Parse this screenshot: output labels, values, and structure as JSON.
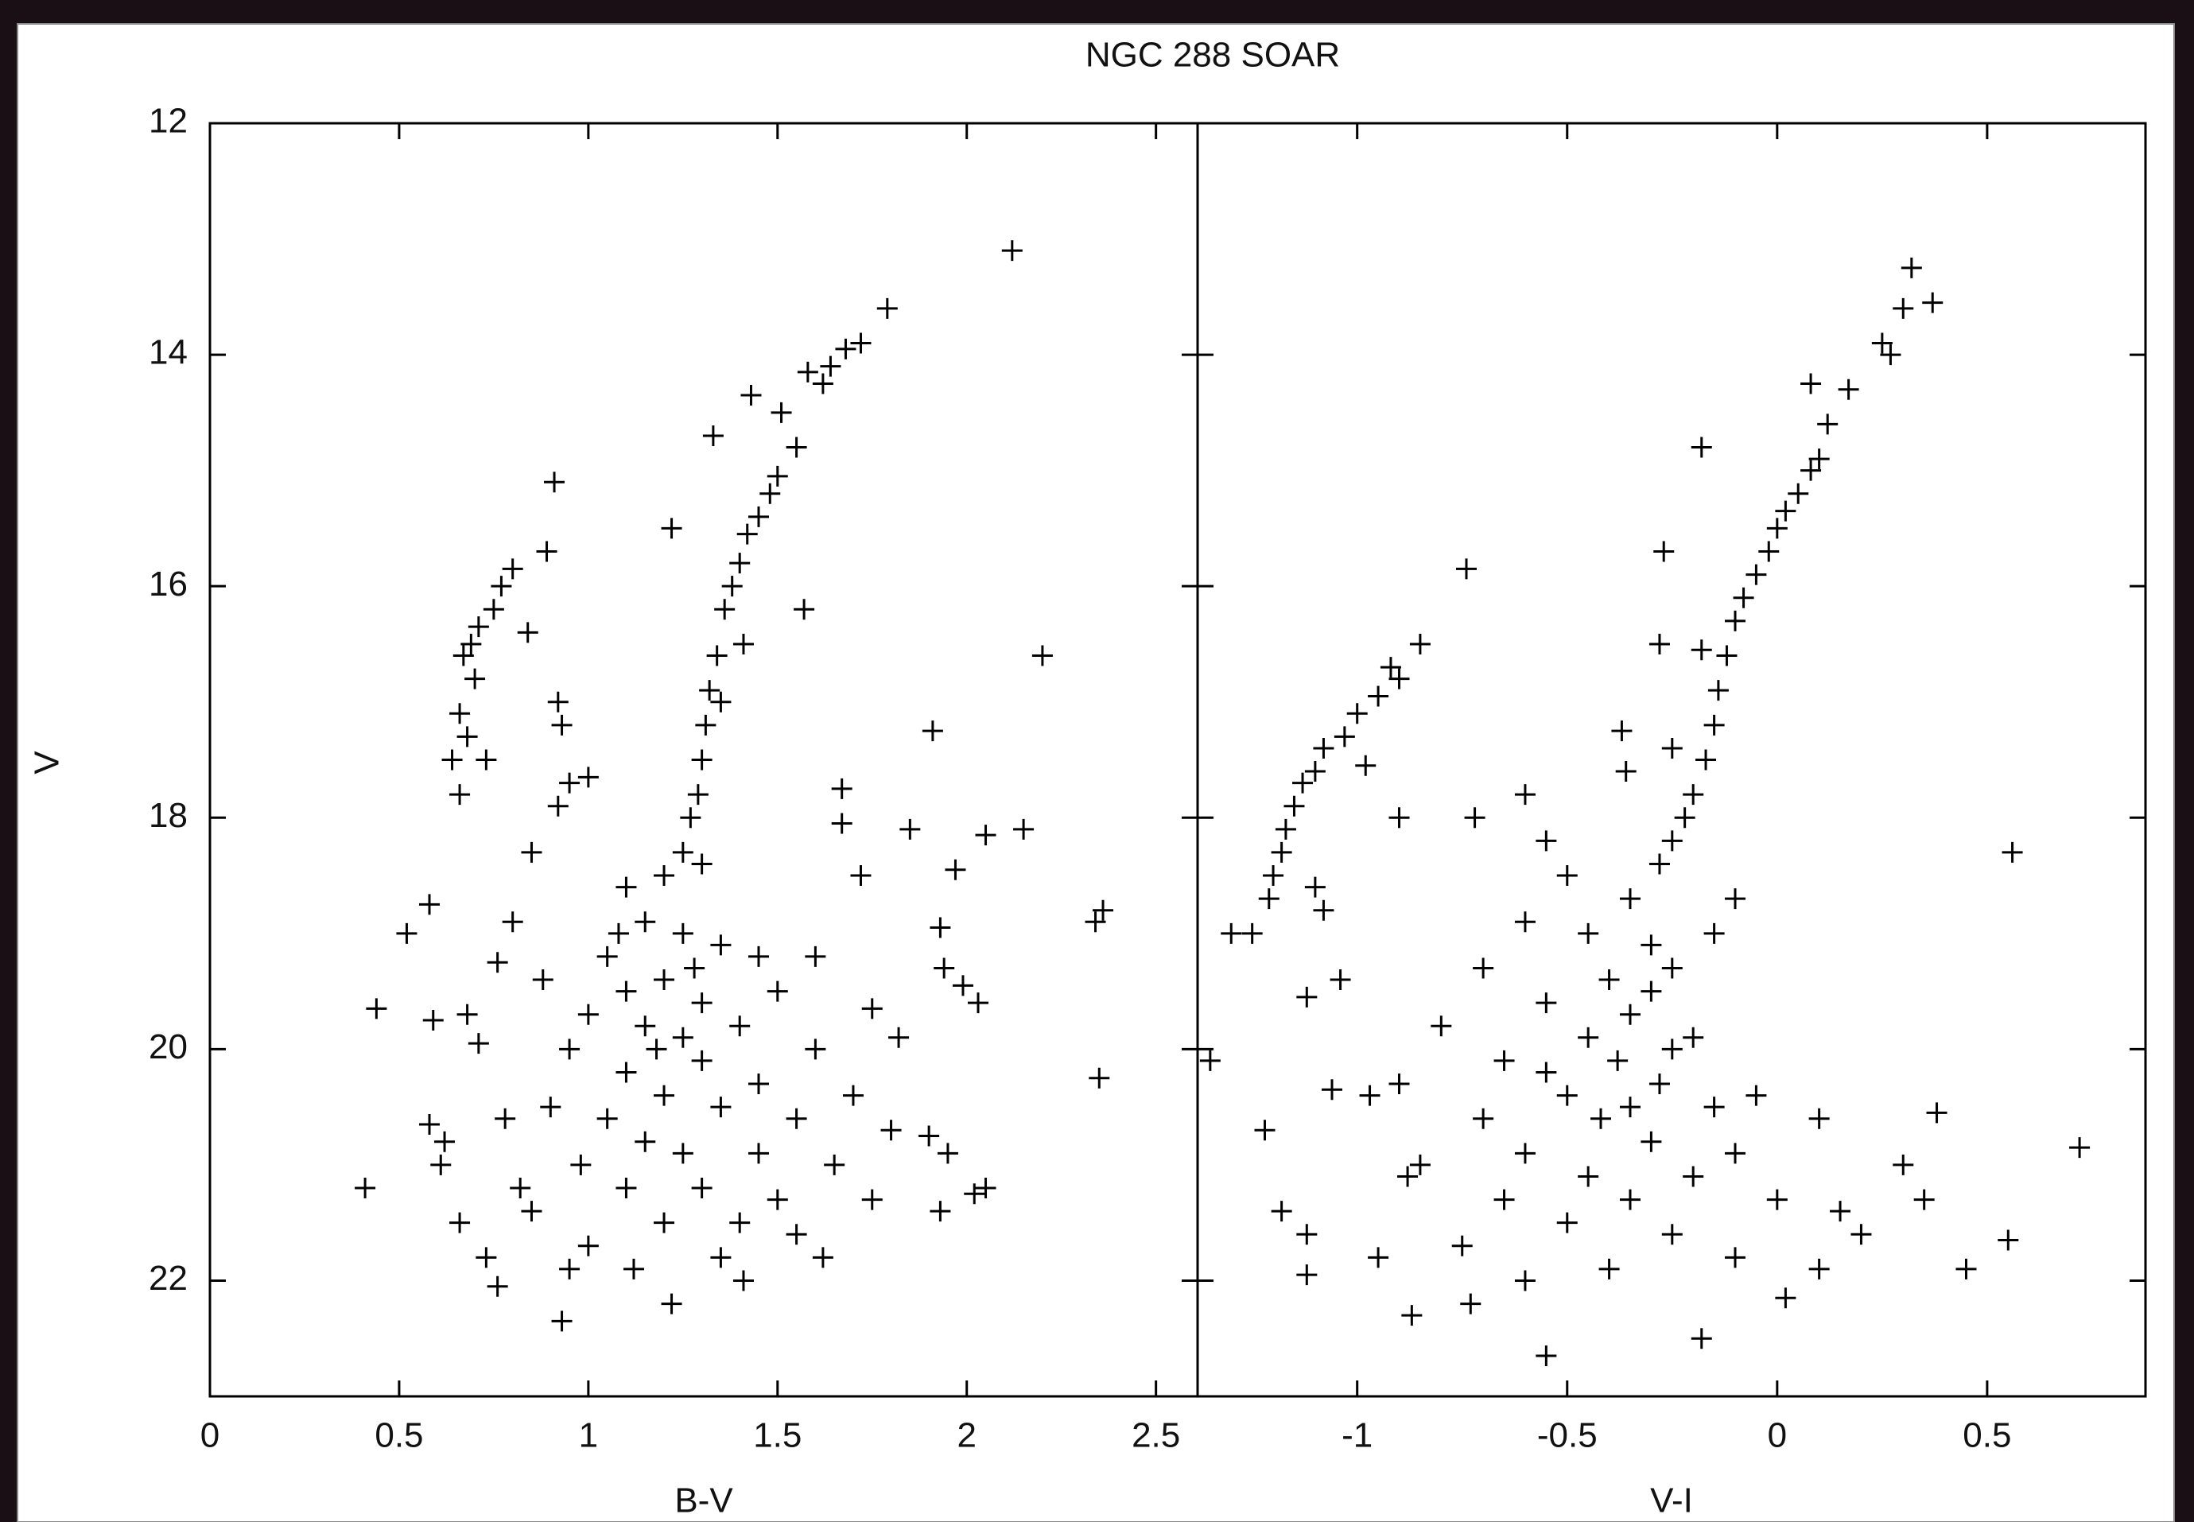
{
  "chart_data": [
    {
      "type": "scatter",
      "title": "NGC 288 SOAR",
      "xlabel": "B-V",
      "ylabel": "V",
      "color": "#000000",
      "marker": "+",
      "xlim": [
        0,
        2.61
      ],
      "xticks": [
        0,
        0.5,
        1,
        1.5,
        2,
        2.5
      ],
      "ylim": [
        23,
        12
      ],
      "yticks": [
        12,
        14,
        16,
        18,
        20,
        22
      ],
      "x": [
        2.12,
        1.79,
        1.72,
        1.68,
        1.64,
        1.62,
        1.58,
        1.43,
        1.51,
        1.55,
        1.33,
        1.5,
        1.48,
        1.45,
        1.42,
        1.4,
        0.91,
        1.22,
        1.38,
        1.36,
        1.41,
        1.57,
        1.34,
        1.32,
        1.31,
        1.35,
        2.2,
        1.91,
        1.3,
        1.29,
        1.27,
        1.25,
        0.89,
        0.8,
        0.77,
        0.75,
        0.71,
        0.69,
        0.67,
        0.7,
        0.66,
        0.68,
        0.64,
        0.66,
        0.84,
        0.73,
        0.92,
        0.93,
        0.95,
        1.0,
        0.92,
        1.67,
        1.67,
        1.85,
        2.05,
        2.15,
        1.97,
        1.72,
        2.36,
        2.34,
        1.93,
        0.58,
        0.52,
        1.94,
        1.99,
        2.03,
        0.44,
        0.59,
        0.68,
        0.71,
        0.76,
        2.35,
        0.58,
        0.62,
        0.61,
        0.41,
        0.66,
        0.73,
        0.76,
        0.93,
        1.22,
        2.02,
        2.05,
        1.93,
        1.9,
        1.95,
        1.82,
        1.75,
        1.62,
        1.41,
        1.1,
        1.2,
        1.3,
        1.15,
        1.25,
        1.05,
        1.35,
        1.45,
        1.1,
        1.2,
        1.3,
        1.0,
        1.5,
        1.15,
        1.25,
        1.4,
        0.95,
        1.6,
        1.1,
        1.3,
        1.2,
        1.45,
        0.9,
        1.05,
        1.35,
        1.55,
        1.7,
        1.15,
        1.25,
        1.45,
        0.98,
        1.65,
        1.1,
        1.3,
        1.5,
        1.2,
        1.4,
        0.85,
        1.75,
        1.0,
        1.35,
        1.55,
        0.95,
        1.12,
        1.28,
        1.18,
        1.08,
        0.85,
        0.8,
        0.88,
        1.6,
        1.8,
        0.78,
        0.82
      ],
      "y": [
        13.1,
        13.6,
        13.9,
        13.95,
        14.1,
        14.25,
        14.15,
        14.35,
        14.5,
        14.8,
        14.7,
        15.05,
        15.2,
        15.4,
        15.55,
        15.8,
        15.1,
        15.5,
        16.0,
        16.2,
        16.5,
        16.2,
        16.6,
        16.9,
        17.2,
        17.0,
        16.6,
        17.25,
        17.5,
        17.8,
        18.0,
        18.3,
        15.7,
        15.85,
        16.0,
        16.2,
        16.35,
        16.5,
        16.6,
        16.8,
        17.1,
        17.3,
        17.5,
        17.8,
        16.4,
        17.5,
        17.0,
        17.2,
        17.7,
        17.65,
        17.9,
        17.75,
        18.05,
        18.1,
        18.15,
        18.1,
        18.45,
        18.5,
        18.8,
        18.9,
        18.95,
        18.75,
        19.0,
        19.3,
        19.45,
        19.6,
        19.65,
        19.75,
        19.7,
        19.95,
        19.25,
        20.25,
        20.65,
        20.8,
        21.0,
        21.2,
        21.5,
        21.8,
        22.05,
        22.35,
        22.2,
        21.25,
        21.2,
        21.4,
        20.75,
        20.9,
        19.9,
        19.65,
        21.8,
        22.0,
        18.6,
        18.5,
        18.4,
        18.9,
        19.0,
        19.2,
        19.1,
        19.2,
        19.5,
        19.4,
        19.6,
        19.7,
        19.5,
        19.8,
        19.9,
        19.8,
        20.0,
        20.0,
        20.2,
        20.1,
        20.4,
        20.3,
        20.5,
        20.6,
        20.5,
        20.6,
        20.4,
        20.8,
        20.9,
        20.9,
        21.0,
        21.0,
        21.2,
        21.2,
        21.3,
        21.5,
        21.5,
        21.4,
        21.3,
        21.7,
        21.8,
        21.6,
        21.9,
        21.9,
        19.3,
        20.0,
        19.0,
        18.3,
        18.9,
        19.4,
        19.2,
        20.7,
        20.6,
        21.2
      ]
    },
    {
      "type": "scatter",
      "xlabel": "V-I",
      "color": "#000000",
      "marker": "+",
      "xlim": [
        -1.38,
        0.877
      ],
      "xticks": [
        -1,
        -0.5,
        0,
        0.5
      ],
      "ylim": [
        23,
        12
      ],
      "x": [
        0.32,
        0.37,
        0.3,
        0.25,
        0.27,
        0.08,
        0.17,
        0.12,
        0.1,
        0.08,
        -0.18,
        0.05,
        0.02,
        0.0,
        -0.02,
        -0.05,
        -0.08,
        -0.1,
        -0.12,
        -0.14,
        -0.15,
        -0.17,
        -0.2,
        -0.22,
        -0.25,
        -0.28,
        -0.27,
        -0.28,
        -0.18,
        -0.25,
        -0.37,
        -0.95,
        -0.9,
        -0.92,
        -1.0,
        -1.03,
        -1.08,
        -1.1,
        -1.13,
        -1.15,
        -1.17,
        -1.18,
        -1.2,
        -1.21,
        -1.25,
        -1.3,
        -0.85,
        -0.98,
        -0.74,
        -0.36,
        -0.6,
        -0.72,
        -0.9,
        0.56,
        -1.1,
        -1.08,
        -0.55,
        -1.35,
        -1.12,
        -1.04,
        -1.22,
        -1.18,
        -1.12,
        -1.12,
        -0.95,
        -0.87,
        -0.73,
        -0.55,
        -0.18,
        0.02,
        0.38,
        0.72,
        0.55,
        0.45,
        0.35,
        0.3,
        0.1,
        -0.05,
        -0.88,
        -0.97,
        -1.06,
        -0.5,
        -0.35,
        -0.6,
        -0.45,
        -0.3,
        -0.7,
        -0.4,
        -0.25,
        -0.55,
        -0.35,
        -0.8,
        -0.45,
        -0.2,
        -0.65,
        -0.38,
        -0.28,
        -0.9,
        -0.5,
        -0.15,
        -0.7,
        -0.42,
        -0.3,
        -0.6,
        -0.1,
        -0.85,
        -0.45,
        -0.2,
        -0.65,
        -0.35,
        0.0,
        0.15,
        -0.5,
        -0.25,
        0.2,
        -0.75,
        -0.1,
        -0.4,
        0.1,
        -0.6,
        -0.3,
        -0.15,
        -0.1,
        -0.35,
        -0.55,
        -0.25
      ],
      "y": [
        13.25,
        13.55,
        13.6,
        13.9,
        14.0,
        14.25,
        14.3,
        14.6,
        14.9,
        15.0,
        14.8,
        15.2,
        15.35,
        15.5,
        15.7,
        15.9,
        16.1,
        16.3,
        16.6,
        16.9,
        17.2,
        17.5,
        17.8,
        18.0,
        18.2,
        18.4,
        15.7,
        16.5,
        16.55,
        17.4,
        17.25,
        16.95,
        16.8,
        16.7,
        17.1,
        17.3,
        17.4,
        17.6,
        17.7,
        17.9,
        18.1,
        18.3,
        18.5,
        18.7,
        19.0,
        19.0,
        16.5,
        17.55,
        15.85,
        17.6,
        17.8,
        18.0,
        18.0,
        18.3,
        18.6,
        18.8,
        18.2,
        20.1,
        19.55,
        19.4,
        20.7,
        21.4,
        21.6,
        21.95,
        21.8,
        22.3,
        22.2,
        22.65,
        22.5,
        22.15,
        20.55,
        20.85,
        21.65,
        21.9,
        21.3,
        21.0,
        20.6,
        20.4,
        21.1,
        20.4,
        20.35,
        18.5,
        18.7,
        18.9,
        19.0,
        19.1,
        19.3,
        19.4,
        19.3,
        19.6,
        19.7,
        19.8,
        19.9,
        19.9,
        20.1,
        20.1,
        20.3,
        20.3,
        20.4,
        20.5,
        20.6,
        20.6,
        20.8,
        20.9,
        20.9,
        21.0,
        21.1,
        21.1,
        21.3,
        21.3,
        21.3,
        21.4,
        21.5,
        21.6,
        21.6,
        21.7,
        21.8,
        21.9,
        21.9,
        22.0,
        19.5,
        19.0,
        18.7,
        20.5,
        20.2,
        20.0
      ]
    }
  ]
}
